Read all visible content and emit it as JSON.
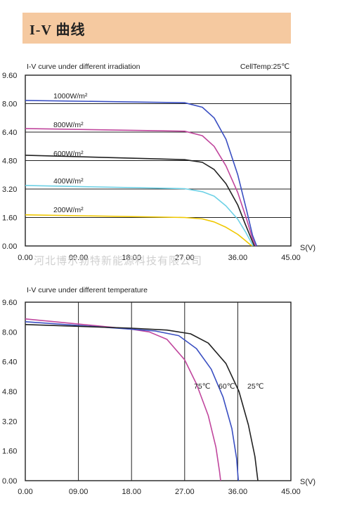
{
  "header": {
    "title": "I-V  曲线"
  },
  "watermark": "河北博尔勃特新能源科技有限公司",
  "colors": {
    "banner": "#f5c9a0",
    "blue": "#3a4fc2",
    "magenta": "#c0469d",
    "black": "#222222",
    "cyan": "#6dd1e6",
    "yellow": "#f0c800"
  },
  "chart_data": [
    {
      "type": "line",
      "title": "I-V curve under different irradiation",
      "note": "CellTemp:25℃",
      "xlabel": "S(V)",
      "xlim": [
        0,
        45
      ],
      "ylim": [
        0,
        9.6
      ],
      "xticks": [
        "0.00",
        "09.00",
        "18.00",
        "27.00",
        "36.00",
        "45.00"
      ],
      "yticks": [
        "0.00",
        "1.60",
        "3.20",
        "4.80",
        "6.40",
        "8.00",
        "9.60"
      ],
      "series": [
        {
          "name": "1000W/m²",
          "color": "#3a4fc2",
          "points": [
            [
              0,
              8.18
            ],
            [
              27,
              8.05
            ],
            [
              30,
              7.8
            ],
            [
              32,
              7.2
            ],
            [
              34,
              6.0
            ],
            [
              36,
              4.0
            ],
            [
              37.5,
              2.0
            ],
            [
              38.5,
              0.6
            ],
            [
              39.2,
              0
            ]
          ]
        },
        {
          "name": "800W/m²",
          "color": "#c0469d",
          "points": [
            [
              0,
              6.6
            ],
            [
              27,
              6.45
            ],
            [
              30,
              6.2
            ],
            [
              32,
              5.6
            ],
            [
              34,
              4.5
            ],
            [
              36,
              3.0
            ],
            [
              37.5,
              1.5
            ],
            [
              38.4,
              0.5
            ],
            [
              39,
              0
            ]
          ]
        },
        {
          "name": "600W/m²",
          "color": "#222222",
          "points": [
            [
              0,
              5.1
            ],
            [
              27,
              4.85
            ],
            [
              30,
              4.7
            ],
            [
              32,
              4.3
            ],
            [
              34,
              3.5
            ],
            [
              36,
              2.3
            ],
            [
              37.3,
              1.2
            ],
            [
              38.3,
              0.4
            ],
            [
              38.8,
              0
            ]
          ]
        },
        {
          "name": "400W/m²",
          "color": "#6dd1e6",
          "points": [
            [
              0,
              3.4
            ],
            [
              27,
              3.22
            ],
            [
              30,
              3.05
            ],
            [
              32,
              2.8
            ],
            [
              34,
              2.25
            ],
            [
              36,
              1.5
            ],
            [
              37.3,
              0.8
            ],
            [
              38.2,
              0.25
            ],
            [
              38.6,
              0
            ]
          ]
        },
        {
          "name": "200W/m²",
          "color": "#f0c800",
          "points": [
            [
              0,
              1.75
            ],
            [
              27,
              1.6
            ],
            [
              30,
              1.52
            ],
            [
              32,
              1.35
            ],
            [
              34,
              1.05
            ],
            [
              36,
              0.65
            ],
            [
              37.3,
              0.3
            ],
            [
              38.1,
              0.08
            ],
            [
              38.4,
              0
            ]
          ]
        }
      ]
    },
    {
      "type": "line",
      "title": "I-V curve under different temperature",
      "xlabel": "S(V)",
      "xlim": [
        0,
        45
      ],
      "ylim": [
        0,
        9.6
      ],
      "xticks": [
        "0.00",
        "09.00",
        "18.00",
        "27.00",
        "36.00",
        "45.00"
      ],
      "yticks": [
        "0.00",
        "1.60",
        "3.20",
        "4.80",
        "6.40",
        "8.00",
        "9.60"
      ],
      "series": [
        {
          "name": "75℃",
          "color": "#c0469d",
          "points": [
            [
              0,
              8.7
            ],
            [
              18,
              8.15
            ],
            [
              21,
              8.0
            ],
            [
              24,
              7.6
            ],
            [
              27,
              6.5
            ],
            [
              29,
              5.2
            ],
            [
              31,
              3.5
            ],
            [
              32.3,
              1.8
            ],
            [
              32.9,
              0.5
            ],
            [
              33.1,
              0
            ]
          ]
        },
        {
          "name": "60℃",
          "color": "#3a4fc2",
          "points": [
            [
              0,
              8.55
            ],
            [
              18,
              8.15
            ],
            [
              22,
              8.05
            ],
            [
              26,
              7.8
            ],
            [
              29,
              7.1
            ],
            [
              31.5,
              6.0
            ],
            [
              33.5,
              4.5
            ],
            [
              35,
              2.8
            ],
            [
              35.8,
              1.2
            ],
            [
              36.1,
              0
            ]
          ]
        },
        {
          "name": "25℃",
          "color": "#222222",
          "points": [
            [
              0,
              8.4
            ],
            [
              18,
              8.2
            ],
            [
              24,
              8.1
            ],
            [
              28,
              7.9
            ],
            [
              31,
              7.4
            ],
            [
              34,
              6.3
            ],
            [
              36.2,
              4.8
            ],
            [
              37.8,
              3.0
            ],
            [
              38.9,
              1.3
            ],
            [
              39.4,
              0
            ]
          ]
        }
      ]
    }
  ]
}
